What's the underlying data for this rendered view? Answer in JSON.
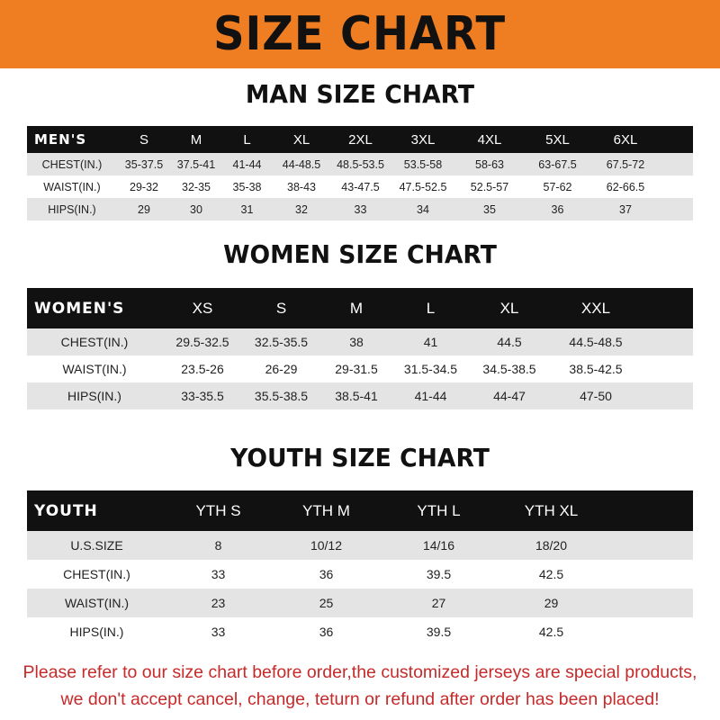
{
  "banner_title": "SIZE CHART",
  "colors": {
    "banner": "#ef7d22",
    "header_row": "#111111",
    "alt_row": "#e4e4e4",
    "notice": "#c62a2a"
  },
  "men": {
    "title": "MAN SIZE CHART",
    "header": [
      "MEN'S",
      "S",
      "M",
      "L",
      "XL",
      "2XL",
      "3XL",
      "4XL",
      "5XL",
      "6XL"
    ],
    "rows": [
      [
        "CHEST(IN.)",
        "35-37.5",
        "37.5-41",
        "41-44",
        "44-48.5",
        "48.5-53.5",
        "53.5-58",
        "58-63",
        "63-67.5",
        "67.5-72"
      ],
      [
        "WAIST(IN.)",
        "29-32",
        "32-35",
        "35-38",
        "38-43",
        "43-47.5",
        "47.5-52.5",
        "52.5-57",
        "57-62",
        "62-66.5"
      ],
      [
        "HIPS(IN.)",
        "29",
        "30",
        "31",
        "32",
        "33",
        "34",
        "35",
        "36",
        "37"
      ]
    ]
  },
  "women": {
    "title": "WOMEN SIZE CHART",
    "header": [
      "WOMEN'S",
      "XS",
      "S",
      "M",
      "L",
      "XL",
      "XXL"
    ],
    "rows": [
      [
        "CHEST(IN.)",
        "29.5-32.5",
        "32.5-35.5",
        "38",
        "41",
        "44.5",
        "44.5-48.5"
      ],
      [
        "WAIST(IN.)",
        "23.5-26",
        "26-29",
        "29-31.5",
        "31.5-34.5",
        "34.5-38.5",
        "38.5-42.5"
      ],
      [
        "HIPS(IN.)",
        "33-35.5",
        "35.5-38.5",
        "38.5-41",
        "41-44",
        "44-47",
        "47-50"
      ]
    ]
  },
  "youth": {
    "title": "YOUTH SIZE CHART",
    "header": [
      "YOUTH",
      "YTH S",
      "YTH M",
      "YTH L",
      "YTH XL"
    ],
    "rows": [
      [
        "U.S.SIZE",
        "8",
        "10/12",
        "14/16",
        "18/20"
      ],
      [
        "CHEST(IN.)",
        "33",
        "36",
        "39.5",
        "42.5"
      ],
      [
        "WAIST(IN.)",
        "23",
        "25",
        "27",
        "29"
      ],
      [
        "HIPS(IN.)",
        "33",
        "36",
        "39.5",
        "42.5"
      ]
    ]
  },
  "notice": {
    "line1": "Please refer to our size chart before order,the customized jerseys are special products,",
    "line2": "we don't accept cancel, change, teturn or refund after order has been placed!"
  }
}
